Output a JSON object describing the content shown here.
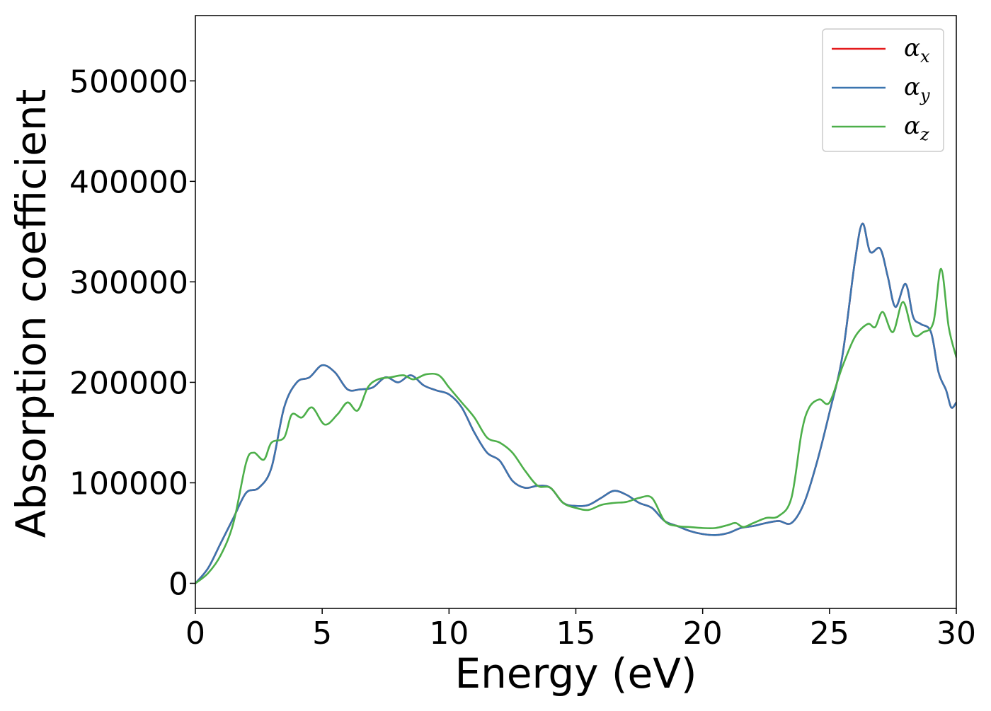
{
  "chart_data": {
    "type": "line",
    "title": "",
    "xlabel": "Energy (eV)",
    "ylabel": "Absorption coefficient",
    "xlim": [
      0,
      30
    ],
    "ylim": [
      -25000,
      565000
    ],
    "x_ticks": [
      "0",
      "5",
      "10",
      "15",
      "20",
      "25",
      "30"
    ],
    "y_ticks": [
      "0",
      "100000",
      "200000",
      "300000",
      "400000",
      "500000"
    ],
    "grid": false,
    "legend_position": "top-right",
    "series": [
      {
        "name": "α_x",
        "legend_main": "α",
        "legend_sub": "x",
        "color": "#e41a1c",
        "x": [
          0,
          0.5,
          1,
          1.5,
          2,
          2.5,
          3,
          3.5,
          4,
          4.5,
          5,
          5.5,
          6,
          6.5,
          7,
          7.5,
          8,
          8.5,
          9,
          9.5,
          10,
          10.5,
          11,
          11.5,
          12,
          12.5,
          13,
          13.5,
          14,
          14.5,
          15,
          15.5,
          16,
          16.5,
          17,
          17.5,
          18,
          18.5,
          19,
          19.5,
          20,
          20.5,
          21,
          21.5,
          22,
          22.5,
          23,
          23.5,
          24,
          24.5,
          25,
          25.5,
          26,
          26.3,
          26.6,
          27,
          27.3,
          27.6,
          28,
          28.3,
          28.6,
          29,
          29.3,
          29.6,
          29.8,
          30
        ],
        "y": [
          0,
          15000,
          40000,
          65000,
          90000,
          95000,
          115000,
          175000,
          200000,
          205000,
          217000,
          210000,
          193000,
          193000,
          195000,
          205000,
          200000,
          207000,
          197000,
          192000,
          188000,
          175000,
          150000,
          130000,
          122000,
          102000,
          95000,
          97000,
          95000,
          80000,
          77000,
          78000,
          85000,
          92000,
          88000,
          80000,
          75000,
          62000,
          57000,
          52000,
          49000,
          48000,
          50000,
          55000,
          57000,
          60000,
          62000,
          60000,
          80000,
          120000,
          170000,
          225000,
          320000,
          358000,
          330000,
          333000,
          305000,
          275000,
          298000,
          265000,
          258000,
          250000,
          210000,
          192000,
          175000,
          180000
        ]
      },
      {
        "name": "α_y",
        "legend_main": "α",
        "legend_sub": "y",
        "color": "#3b75af",
        "x": [
          0,
          0.5,
          1,
          1.5,
          2,
          2.5,
          3,
          3.5,
          4,
          4.5,
          5,
          5.5,
          6,
          6.5,
          7,
          7.5,
          8,
          8.5,
          9,
          9.5,
          10,
          10.5,
          11,
          11.5,
          12,
          12.5,
          13,
          13.5,
          14,
          14.5,
          15,
          15.5,
          16,
          16.5,
          17,
          17.5,
          18,
          18.5,
          19,
          19.5,
          20,
          20.5,
          21,
          21.5,
          22,
          22.5,
          23,
          23.5,
          24,
          24.5,
          25,
          25.5,
          26,
          26.3,
          26.6,
          27,
          27.3,
          27.6,
          28,
          28.3,
          28.6,
          29,
          29.3,
          29.6,
          29.8,
          30
        ],
        "y": [
          0,
          15000,
          40000,
          65000,
          90000,
          95000,
          115000,
          175000,
          200000,
          205000,
          217000,
          210000,
          193000,
          193000,
          195000,
          205000,
          200000,
          207000,
          197000,
          192000,
          188000,
          175000,
          150000,
          130000,
          122000,
          102000,
          95000,
          97000,
          95000,
          80000,
          77000,
          78000,
          85000,
          92000,
          88000,
          80000,
          75000,
          62000,
          57000,
          52000,
          49000,
          48000,
          50000,
          55000,
          57000,
          60000,
          62000,
          60000,
          80000,
          120000,
          170000,
          225000,
          320000,
          358000,
          330000,
          333000,
          305000,
          275000,
          298000,
          265000,
          258000,
          250000,
          210000,
          192000,
          175000,
          180000
        ]
      },
      {
        "name": "α_z",
        "legend_main": "α",
        "legend_sub": "z",
        "color": "#4daf4a",
        "x": [
          0,
          0.5,
          1,
          1.5,
          2,
          2.3,
          2.7,
          3,
          3.5,
          3.8,
          4.2,
          4.6,
          5.1,
          5.6,
          6,
          6.4,
          6.8,
          7.2,
          7.7,
          8.2,
          8.6,
          9.1,
          9.6,
          10,
          10.5,
          11,
          11.5,
          12,
          12.5,
          13,
          13.5,
          14,
          14.5,
          15,
          15.5,
          16,
          16.5,
          17,
          17.5,
          18,
          18.5,
          19,
          19.5,
          20,
          20.5,
          21,
          21.3,
          21.6,
          22,
          22.5,
          23,
          23.5,
          23.9,
          24.2,
          24.6,
          25,
          25.5,
          26,
          26.5,
          26.8,
          27.1,
          27.5,
          27.9,
          28.3,
          28.7,
          29.1,
          29.4,
          29.7,
          30
        ],
        "y": [
          0,
          10000,
          28000,
          60000,
          120000,
          130000,
          123000,
          140000,
          145000,
          168000,
          165000,
          175000,
          158000,
          168000,
          180000,
          172000,
          195000,
          203000,
          205000,
          207000,
          203000,
          208000,
          207000,
          195000,
          180000,
          165000,
          145000,
          140000,
          130000,
          112000,
          97000,
          95000,
          80000,
          75000,
          73000,
          78000,
          80000,
          81000,
          85000,
          85000,
          62000,
          57000,
          56000,
          55000,
          55000,
          58000,
          60000,
          56000,
          60000,
          65000,
          67000,
          85000,
          150000,
          175000,
          183000,
          180000,
          215000,
          245000,
          258000,
          255000,
          270000,
          250000,
          280000,
          248000,
          250000,
          260000,
          313000,
          255000,
          225000
        ]
      }
    ]
  }
}
